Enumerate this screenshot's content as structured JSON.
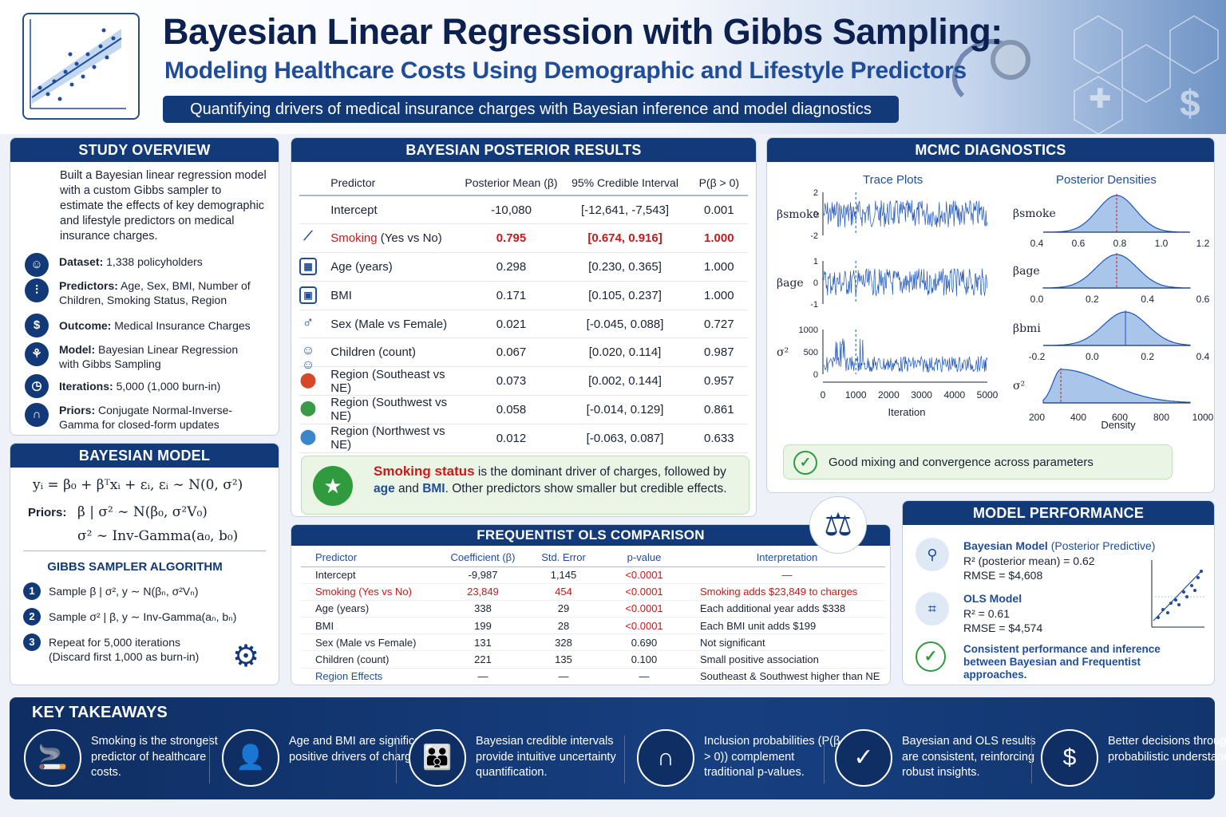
{
  "header": {
    "title": "Bayesian Linear Regression with Gibbs Sampling:",
    "subtitle": "Modeling Healthcare Costs Using Demographic and Lifestyle Predictors",
    "tagline": "Quantifying drivers of medical insurance charges with Bayesian inference and model diagnostics"
  },
  "overview": {
    "title": "STUDY OVERVIEW",
    "intro": "Built a Bayesian linear regression model with a custom Gibbs sampler to estimate the effects of key demographic and lifestyle predictors on medical insurance charges.",
    "items": [
      {
        "icon": "people-icon",
        "label": "Dataset:",
        "text": "1,338 policyholders"
      },
      {
        "icon": "sliders-icon",
        "label": "Predictors:",
        "text": "Age, Sex, BMI, Number of Children, Smoking Status, Region"
      },
      {
        "icon": "dollar-icon",
        "label": "Outcome:",
        "text": "Medical Insurance Charges"
      },
      {
        "icon": "network-icon",
        "label": "Model:",
        "text": "Bayesian Linear Regression with Gibbs Sampling"
      },
      {
        "icon": "clock-icon",
        "label": "Iterations:",
        "text": "5,000 (1,000 burn-in)"
      },
      {
        "icon": "bell-curve-icon",
        "label": "Priors:",
        "text": "Conjugate Normal-Inverse-Gamma for closed-form updates"
      }
    ]
  },
  "bayes_model": {
    "title": "BAYESIAN MODEL",
    "equation": "yᵢ = β₀ + βᵀxᵢ + εᵢ,  εᵢ ∼ N(0, σ²)",
    "priors_label": "Priors:",
    "prior_beta": "β | σ² ∼ N(β₀, σ²V₀)",
    "prior_sigma": "σ² ∼ Inv-Gamma(a₀, b₀)",
    "gibbs_title": "GIBBS SAMPLER ALGORITHM",
    "steps": [
      {
        "num": "1",
        "text": "Sample β | σ², y ∼ N(βₙ, σ²Vₙ)"
      },
      {
        "num": "2",
        "text": "Sample σ² | β, y ∼ Inv-Gamma(aₙ, bₙ)"
      },
      {
        "num": "3",
        "text": "Repeat for 5,000 iterations",
        "text2": "(Discard first 1,000 as burn-in)"
      }
    ]
  },
  "posterior": {
    "title": "BAYESIAN POSTERIOR RESULTS",
    "columns": [
      "Predictor",
      "Posterior Mean (β)",
      "95% Credible Interval",
      "P(β > 0)"
    ],
    "rows": [
      {
        "icon": "",
        "predictor": "Intercept",
        "note": "",
        "mean": "-10,080",
        "ci": "[-12,641, -7,543]",
        "p": "0.001"
      },
      {
        "icon": "cigarette-icon",
        "predictor": "Smoking",
        "note": " (Yes vs No)",
        "mean": "0.795",
        "ci": "[0.674, 0.916]",
        "p": "1.000"
      },
      {
        "icon": "calendar-icon",
        "predictor": "Age (years)",
        "note": "",
        "mean": "0.298",
        "ci": "[0.230, 0.365]",
        "p": "1.000"
      },
      {
        "icon": "scale-icon",
        "predictor": "BMI",
        "note": "",
        "mean": "0.171",
        "ci": "[0.105, 0.237]",
        "p": "1.000"
      },
      {
        "icon": "male-icon",
        "predictor": "Sex (Male vs Female)",
        "note": "",
        "mean": "0.021",
        "ci": "[-0.045, 0.088]",
        "p": "0.727"
      },
      {
        "icon": "children-icon",
        "predictor": "Children (count)",
        "note": "",
        "mean": "0.067",
        "ci": "[0.020, 0.114]",
        "p": "0.987"
      },
      {
        "icon": "pin-red-icon",
        "predictor": "Region (Southeast vs NE)",
        "note": "",
        "mean": "0.073",
        "ci": "[0.002, 0.144]",
        "p": "0.957"
      },
      {
        "icon": "pin-green-icon",
        "predictor": "Region (Southwest vs NE)",
        "note": "",
        "mean": "0.058",
        "ci": "[-0.014, 0.129]",
        "p": "0.861"
      },
      {
        "icon": "pin-blue-icon",
        "predictor": "Region (Northwest vs NE)",
        "note": "",
        "mean": "0.012",
        "ci": "[-0.063, 0.087]",
        "p": "0.633"
      }
    ],
    "callout": {
      "red": "Smoking status",
      "t1": " is the dominant driver of charges, followed by ",
      "age": "age",
      "t2": " and ",
      "bmi": "BMI",
      "t3": ".  Other predictors show smaller but credible effects."
    }
  },
  "mcmc": {
    "title": "MCMC DIAGNOSTICS",
    "trace_title": "Trace Plots",
    "density_title": "Posterior Densities",
    "trace_labels": [
      "βsmoke",
      "βage",
      "σ²"
    ],
    "trace_ticks": [
      [
        "2",
        "0",
        "-2"
      ],
      [
        "1",
        "0",
        "-1"
      ],
      [
        "1000",
        "500",
        "0"
      ]
    ],
    "trace_x_ticks": [
      "0",
      "1000",
      "2000",
      "3000",
      "4000",
      "5000"
    ],
    "trace_xlabel": "Iteration",
    "density_labels": [
      "βsmoke",
      "βage",
      "βbmi",
      "σ²"
    ],
    "density_ticks": [
      [
        "0.4",
        "0.6",
        "0.8",
        "1.0",
        "1.2"
      ],
      [
        "0.0",
        "0.2",
        "0.4",
        "0.6"
      ],
      [
        "-0.2",
        "0.0",
        "0.2",
        "0.4"
      ],
      [
        "200",
        "400",
        "600",
        "800",
        "1000"
      ]
    ],
    "density_xlabel": "Density",
    "good": "Good mixing and convergence across parameters"
  },
  "ols": {
    "title": "FREQUENTIST OLS COMPARISON",
    "columns": [
      "Predictor",
      "Coefficient (β)",
      "Std. Error",
      "p-value",
      "Interpretation"
    ],
    "rows": [
      [
        "Intercept",
        "-9,987",
        "1,145",
        "<0.0001",
        "—"
      ],
      [
        "Smoking (Yes vs No)",
        "23,849",
        "454",
        "<0.0001",
        "Smoking adds $23,849 to charges"
      ],
      [
        "Age (years)",
        "338",
        "29",
        "<0.0001",
        "Each additional year adds $338"
      ],
      [
        "BMI",
        "199",
        "28",
        "<0.0001",
        "Each BMI unit adds $199"
      ],
      [
        "Sex (Male vs Female)",
        "131",
        "328",
        "0.690",
        "Not significant"
      ],
      [
        "Children (count)",
        "221",
        "135",
        "0.100",
        "Small positive association"
      ],
      [
        "Region Effects",
        "—",
        "—",
        "—",
        "Southeast & Southwest higher than NE"
      ]
    ]
  },
  "performance": {
    "title": "MODEL PERFORMANCE",
    "bayes_title": "Bayesian Model",
    "bayes_note": " (Posterior Predictive)",
    "bayes_r2": "R² (posterior mean) = 0.62",
    "bayes_rmse": "RMSE = $4,608",
    "ols_title": "OLS Model",
    "ols_r2": "R² = 0.61",
    "ols_rmse": "RMSE = $4,574",
    "consistent": "Consistent performance and inference between Bayesian and Frequentist approaches."
  },
  "takeaways": {
    "title": "KEY TAKEAWAYS",
    "items": [
      {
        "icon": "cigarette-icon",
        "glyph": "🚬",
        "text": "Smoking is the strongest predictor of healthcare costs."
      },
      {
        "icon": "person-icon",
        "glyph": "👤",
        "text": "Age and BMI are significant positive drivers of charges."
      },
      {
        "icon": "group-icon",
        "glyph": "👪",
        "text": "Bayesian credible intervals provide intuitive uncertainty quantification."
      },
      {
        "icon": "bell-curve-icon",
        "glyph": "∩",
        "text": "Inclusion probabilities (P(β > 0)) complement traditional p-values."
      },
      {
        "icon": "shield-check-icon",
        "glyph": "✓",
        "text": "Bayesian and OLS results are consistent, reinforcing robust insights."
      },
      {
        "icon": "dollar-icon",
        "glyph": "$",
        "text": "Better decisions through probabilistic understanding."
      }
    ]
  },
  "colors": {
    "navy": "#123a78",
    "accent_blue": "#1f4d9a",
    "red": "#c8191b",
    "green": "#2f9a3e"
  }
}
